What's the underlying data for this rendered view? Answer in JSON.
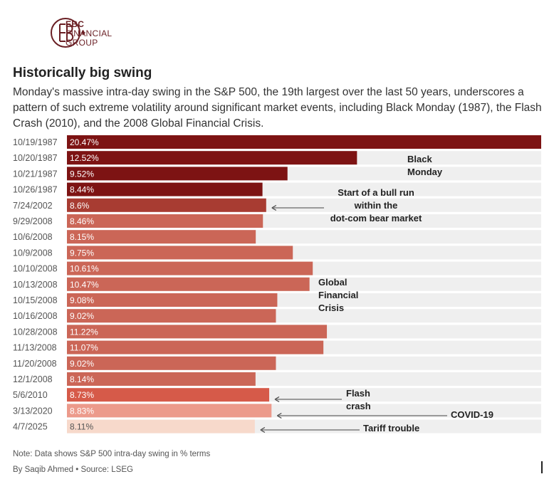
{
  "brand": {
    "line1": "EBC",
    "line2": "FINANCIAL",
    "line3": "GROUP",
    "color": "#6a1f24"
  },
  "title": "Historically big swing",
  "subtitle": "Monday's massive intra-day swing in the S&P 500, the 19th largest over the last 50 years, underscores a pattern of such extreme volatility around significant market events, including Black Monday (1987), the Flash Crash (2010), and the 2008 Global Financial Crisis.",
  "note": "Note: Data shows S&P 500 intra-day swing in % terms",
  "byline": "By Saqib Ahmed • Source: LSEG",
  "chart_data": {
    "type": "bar",
    "orientation": "horizontal",
    "xlim": [
      0,
      20.47
    ],
    "categories": [
      "10/19/1987",
      "10/20/1987",
      "10/21/1987",
      "10/26/1987",
      "7/24/2002",
      "9/29/2008",
      "10/6/2008",
      "10/9/2008",
      "10/10/2008",
      "10/13/2008",
      "10/15/2008",
      "10/16/2008",
      "10/28/2008",
      "11/13/2008",
      "11/20/2008",
      "12/1/2008",
      "5/6/2010",
      "3/13/2020",
      "4/7/2025"
    ],
    "values": [
      20.47,
      12.52,
      9.52,
      8.44,
      8.6,
      8.46,
      8.15,
      9.75,
      10.61,
      10.47,
      9.08,
      9.02,
      11.22,
      11.07,
      9.02,
      8.14,
      8.73,
      8.83,
      8.11
    ],
    "labels": [
      "20.47%",
      "12.52%",
      "9.52%",
      "8.44%",
      "8.6%",
      "8.46%",
      "8.15%",
      "9.75%",
      "10.61%",
      "10.47%",
      "9.08%",
      "9.02%",
      "11.22%",
      "11.07%",
      "9.02%",
      "8.14%",
      "8.73%",
      "8.83%",
      "8.11%"
    ],
    "groups": [
      "black-monday",
      "black-monday",
      "black-monday",
      "black-monday",
      "dotcom",
      "gfc",
      "gfc",
      "gfc",
      "gfc",
      "gfc",
      "gfc",
      "gfc",
      "gfc",
      "gfc",
      "gfc",
      "gfc",
      "flash",
      "covid",
      "tariff"
    ],
    "colors": {
      "black-monday": "#7d1313",
      "dotcom": "#a83c32",
      "gfc": "#cb6657",
      "flash": "#d65a49",
      "covid": "#ec9a8b",
      "tariff": "#f7d9cb",
      "track": "#efefef"
    },
    "label_colors": {
      "black-monday": "#ffffff",
      "dotcom": "#ffffff",
      "gfc": "#ffffff",
      "flash": "#ffffff",
      "covid": "#ffffff",
      "tariff": "#555555"
    },
    "annotations": [
      {
        "lines": [
          "Black",
          "Monday"
        ],
        "row": 1,
        "arrow": false
      },
      {
        "lines": [
          "Start of a bull run",
          "within the",
          "dot-com bear market"
        ],
        "row": 4,
        "arrow": true
      },
      {
        "lines": [
          "Global",
          "Financial",
          "Crisis"
        ],
        "row": 9,
        "arrow": false
      },
      {
        "lines": [
          "Flash",
          "crash"
        ],
        "row": 16,
        "arrow": true
      },
      {
        "lines": [
          "COVID-19"
        ],
        "row": 17,
        "arrow": true
      },
      {
        "lines": [
          "Tariff trouble"
        ],
        "row": 18,
        "arrow": true
      }
    ]
  }
}
